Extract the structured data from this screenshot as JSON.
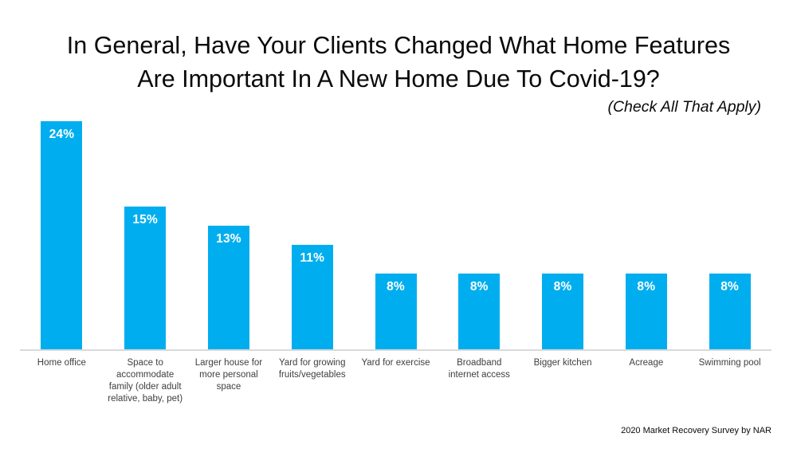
{
  "chart_data": {
    "type": "bar",
    "title": "In General, Have Your Clients Changed What Home Features\nAre Important In A New Home Due To Covid-19?",
    "subtitle": "(Check All That Apply)",
    "source": "2020 Market Recovery Survey by NAR",
    "categories": [
      "Home office",
      "Space to\naccommodate\nfamily (older adult\nrelative, baby, pet)",
      "Larger house for\nmore personal\nspace",
      "Yard for growing\nfruits/vegetables",
      "Yard for exercise",
      "Broadband\ninternet access",
      "Bigger kitchen",
      "Acreage",
      "Swimming pool"
    ],
    "values": [
      24,
      15,
      13,
      11,
      8,
      8,
      8,
      8,
      8
    ],
    "labels": [
      "24%",
      "15%",
      "13%",
      "11%",
      "8%",
      "8%",
      "8%",
      "8%",
      "8%"
    ],
    "xlabel": "",
    "ylabel": "",
    "ylim": [
      0,
      26
    ],
    "grid": false,
    "legend": false,
    "value_axis_visible": false,
    "bar_color": "#00AEEF",
    "axis_line_color": "#D9D9D9",
    "value_label_color": "#FFFFFF",
    "category_label_color": "#404040",
    "text_color": "#0A0A0A"
  }
}
